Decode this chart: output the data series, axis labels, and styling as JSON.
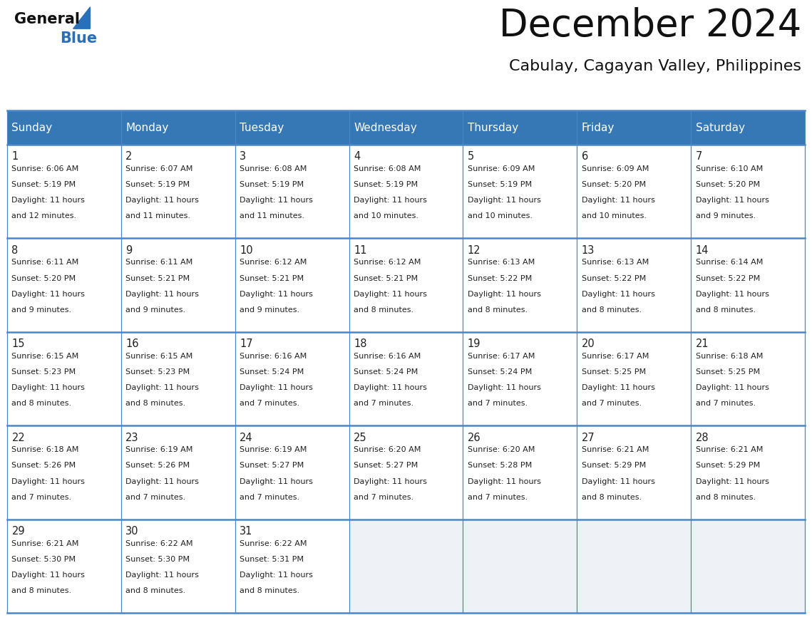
{
  "title": "December 2024",
  "subtitle": "Cabulay, Cagayan Valley, Philippines",
  "header_bg_color": "#3578b5",
  "header_text_color": "#ffffff",
  "cell_bg_white": "#ffffff",
  "cell_bg_gray": "#eef1f5",
  "grid_line_color": "#4a86c8",
  "text_color": "#222222",
  "day_headers": [
    "Sunday",
    "Monday",
    "Tuesday",
    "Wednesday",
    "Thursday",
    "Friday",
    "Saturday"
  ],
  "weeks": [
    [
      {
        "day": 1,
        "sunrise": "6:06 AM",
        "sunset": "5:19 PM",
        "daylight": "11 hours and 12 minutes."
      },
      {
        "day": 2,
        "sunrise": "6:07 AM",
        "sunset": "5:19 PM",
        "daylight": "11 hours and 11 minutes."
      },
      {
        "day": 3,
        "sunrise": "6:08 AM",
        "sunset": "5:19 PM",
        "daylight": "11 hours and 11 minutes."
      },
      {
        "day": 4,
        "sunrise": "6:08 AM",
        "sunset": "5:19 PM",
        "daylight": "11 hours and 10 minutes."
      },
      {
        "day": 5,
        "sunrise": "6:09 AM",
        "sunset": "5:19 PM",
        "daylight": "11 hours and 10 minutes."
      },
      {
        "day": 6,
        "sunrise": "6:09 AM",
        "sunset": "5:20 PM",
        "daylight": "11 hours and 10 minutes."
      },
      {
        "day": 7,
        "sunrise": "6:10 AM",
        "sunset": "5:20 PM",
        "daylight": "11 hours and 9 minutes."
      }
    ],
    [
      {
        "day": 8,
        "sunrise": "6:11 AM",
        "sunset": "5:20 PM",
        "daylight": "11 hours and 9 minutes."
      },
      {
        "day": 9,
        "sunrise": "6:11 AM",
        "sunset": "5:21 PM",
        "daylight": "11 hours and 9 minutes."
      },
      {
        "day": 10,
        "sunrise": "6:12 AM",
        "sunset": "5:21 PM",
        "daylight": "11 hours and 9 minutes."
      },
      {
        "day": 11,
        "sunrise": "6:12 AM",
        "sunset": "5:21 PM",
        "daylight": "11 hours and 8 minutes."
      },
      {
        "day": 12,
        "sunrise": "6:13 AM",
        "sunset": "5:22 PM",
        "daylight": "11 hours and 8 minutes."
      },
      {
        "day": 13,
        "sunrise": "6:13 AM",
        "sunset": "5:22 PM",
        "daylight": "11 hours and 8 minutes."
      },
      {
        "day": 14,
        "sunrise": "6:14 AM",
        "sunset": "5:22 PM",
        "daylight": "11 hours and 8 minutes."
      }
    ],
    [
      {
        "day": 15,
        "sunrise": "6:15 AM",
        "sunset": "5:23 PM",
        "daylight": "11 hours and 8 minutes."
      },
      {
        "day": 16,
        "sunrise": "6:15 AM",
        "sunset": "5:23 PM",
        "daylight": "11 hours and 8 minutes."
      },
      {
        "day": 17,
        "sunrise": "6:16 AM",
        "sunset": "5:24 PM",
        "daylight": "11 hours and 7 minutes."
      },
      {
        "day": 18,
        "sunrise": "6:16 AM",
        "sunset": "5:24 PM",
        "daylight": "11 hours and 7 minutes."
      },
      {
        "day": 19,
        "sunrise": "6:17 AM",
        "sunset": "5:24 PM",
        "daylight": "11 hours and 7 minutes."
      },
      {
        "day": 20,
        "sunrise": "6:17 AM",
        "sunset": "5:25 PM",
        "daylight": "11 hours and 7 minutes."
      },
      {
        "day": 21,
        "sunrise": "6:18 AM",
        "sunset": "5:25 PM",
        "daylight": "11 hours and 7 minutes."
      }
    ],
    [
      {
        "day": 22,
        "sunrise": "6:18 AM",
        "sunset": "5:26 PM",
        "daylight": "11 hours and 7 minutes."
      },
      {
        "day": 23,
        "sunrise": "6:19 AM",
        "sunset": "5:26 PM",
        "daylight": "11 hours and 7 minutes."
      },
      {
        "day": 24,
        "sunrise": "6:19 AM",
        "sunset": "5:27 PM",
        "daylight": "11 hours and 7 minutes."
      },
      {
        "day": 25,
        "sunrise": "6:20 AM",
        "sunset": "5:27 PM",
        "daylight": "11 hours and 7 minutes."
      },
      {
        "day": 26,
        "sunrise": "6:20 AM",
        "sunset": "5:28 PM",
        "daylight": "11 hours and 7 minutes."
      },
      {
        "day": 27,
        "sunrise": "6:21 AM",
        "sunset": "5:29 PM",
        "daylight": "11 hours and 8 minutes."
      },
      {
        "day": 28,
        "sunrise": "6:21 AM",
        "sunset": "5:29 PM",
        "daylight": "11 hours and 8 minutes."
      }
    ],
    [
      {
        "day": 29,
        "sunrise": "6:21 AM",
        "sunset": "5:30 PM",
        "daylight": "11 hours and 8 minutes."
      },
      {
        "day": 30,
        "sunrise": "6:22 AM",
        "sunset": "5:30 PM",
        "daylight": "11 hours and 8 minutes."
      },
      {
        "day": 31,
        "sunrise": "6:22 AM",
        "sunset": "5:31 PM",
        "daylight": "11 hours and 8 minutes."
      },
      null,
      null,
      null,
      null
    ]
  ]
}
